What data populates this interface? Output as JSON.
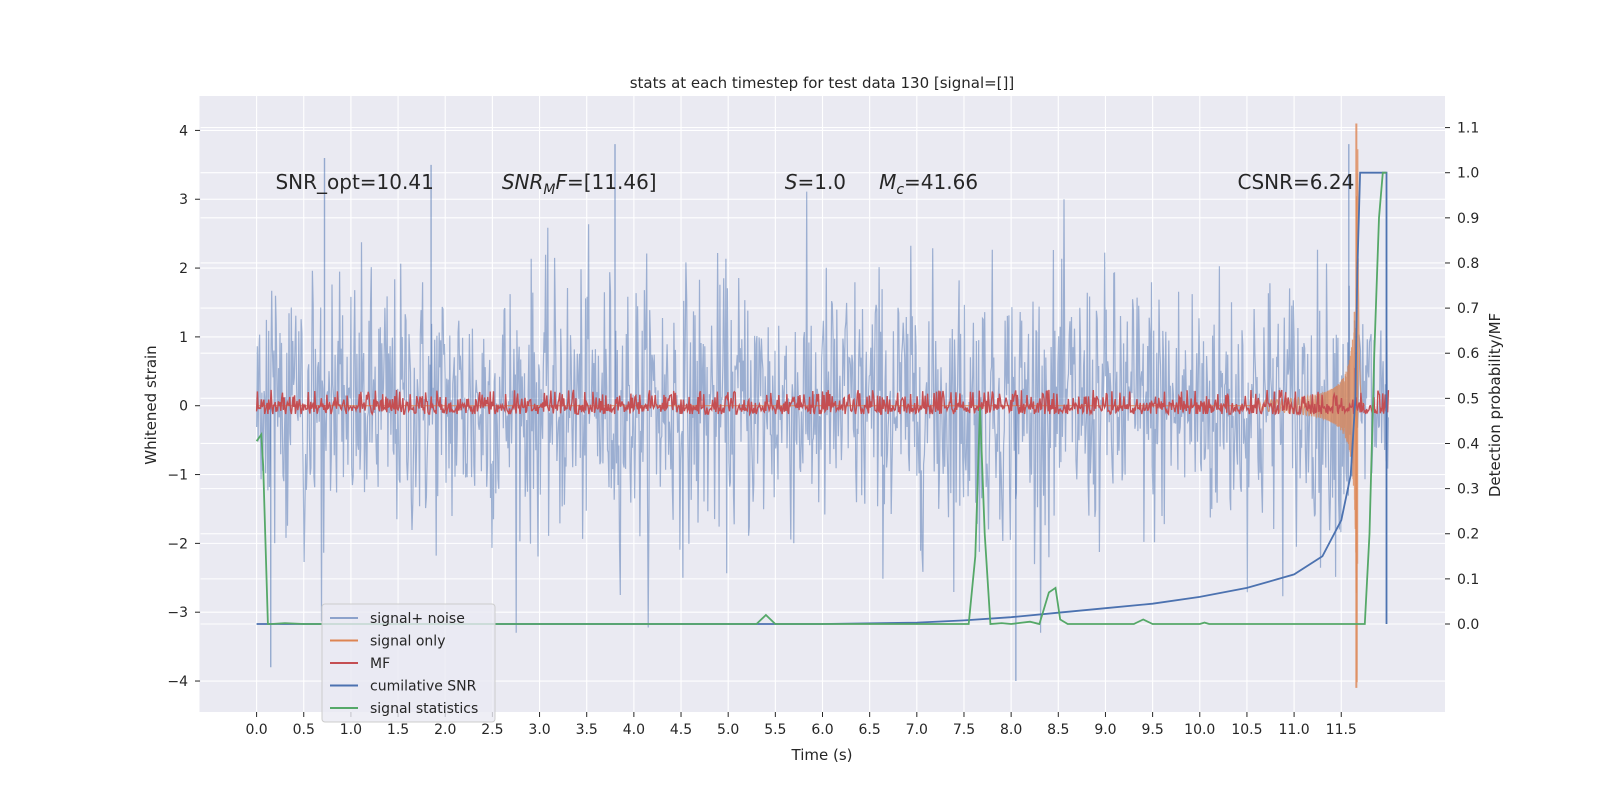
{
  "chart_data": {
    "type": "line",
    "title": "stats at each timestep for test data 130 [signal=[]]",
    "xlabel": "Time (s)",
    "ylabel": "Whitened strain",
    "y2label": "Detection probability/MF",
    "xlim": [
      -0.6,
      12.6
    ],
    "ylim": [
      -4.45,
      4.5
    ],
    "y2lim": [
      -0.195,
      1.17
    ],
    "x_ticks": [
      "0.0",
      "0.5",
      "1.0",
      "1.5",
      "2.0",
      "2.5",
      "3.0",
      "3.5",
      "4.0",
      "4.5",
      "5.0",
      "5.5",
      "6.0",
      "6.5",
      "7.0",
      "7.5",
      "8.0",
      "8.5",
      "9.0",
      "9.5",
      "10.0",
      "10.5",
      "11.0",
      "11.5"
    ],
    "y_ticks": [
      "4",
      "3",
      "2",
      "1",
      "0",
      "−1",
      "−2",
      "−3",
      "−4"
    ],
    "y2_ticks": [
      "1.1",
      "1.0",
      "0.9",
      "0.8",
      "0.7",
      "0.6",
      "0.5",
      "0.4",
      "0.3",
      "0.2",
      "0.1",
      "0.0"
    ],
    "grid": true,
    "legend_position": "bottom-left",
    "annotations": [
      {
        "text": "SNR_opt=10.41",
        "x": 0.2,
        "y": 3.25
      },
      {
        "text": "SNR_MF=[11.46]",
        "x": 2.6,
        "y": 3.25
      },
      {
        "text": "S=1.0",
        "x": 5.6,
        "y": 3.25
      },
      {
        "text": "M_c=41.66",
        "x": 6.6,
        "y": 3.25
      },
      {
        "text": "CSNR=6.24",
        "x": 10.4,
        "y": 3.25
      }
    ],
    "series": [
      {
        "name": "signal+ noise",
        "axis": "left",
        "color": "#4c72b0",
        "description": "whitened strain noise band, roughly within -3 to 3.6",
        "x_range": [
          0.0,
          12.0
        ],
        "envelope_typical": [
          -2.3,
          2.6
        ],
        "peaks": [
          {
            "x": 3.8,
            "y": 3.8
          },
          {
            "x": 1.85,
            "y": 3.5
          },
          {
            "x": 0.72,
            "y": 3.6
          },
          {
            "x": 8.05,
            "y": -4.0
          },
          {
            "x": 0.15,
            "y": -3.8
          },
          {
            "x": 11.58,
            "y": 3.8
          }
        ]
      },
      {
        "name": "signal only",
        "axis": "left",
        "color": "#dd8452",
        "description": "chirp waveform growing toward merger near 11.65 s",
        "points": [
          [
            0.0,
            0.0
          ],
          [
            10.5,
            0.03
          ],
          [
            11.0,
            0.1
          ],
          [
            11.3,
            0.25
          ],
          [
            11.5,
            0.6
          ],
          [
            11.6,
            1.5
          ],
          [
            11.65,
            4.1
          ],
          [
            11.67,
            -4.1
          ],
          [
            11.72,
            0.0
          ],
          [
            12.0,
            0.0
          ]
        ]
      },
      {
        "name": "MF",
        "axis": "left",
        "color": "#c44e52",
        "description": "matched filter output hovering around zero",
        "envelope": [
          -0.12,
          0.25
        ],
        "spike": {
          "x": 11.65,
          "y": 0.55
        }
      },
      {
        "name": "cumilative SNR",
        "axis": "right",
        "color": "#4c72b0",
        "points": [
          [
            0.0,
            0.0
          ],
          [
            5.0,
            0.0
          ],
          [
            6.0,
            0.0
          ],
          [
            7.0,
            0.003
          ],
          [
            7.5,
            0.008
          ],
          [
            8.0,
            0.015
          ],
          [
            8.5,
            0.025
          ],
          [
            9.0,
            0.035
          ],
          [
            9.5,
            0.045
          ],
          [
            10.0,
            0.06
          ],
          [
            10.5,
            0.08
          ],
          [
            11.0,
            0.11
          ],
          [
            11.3,
            0.15
          ],
          [
            11.5,
            0.23
          ],
          [
            11.6,
            0.33
          ],
          [
            11.65,
            0.5
          ],
          [
            11.67,
            0.78
          ],
          [
            11.7,
            1.0
          ],
          [
            11.98,
            1.0
          ],
          [
            11.98,
            0.0
          ]
        ]
      },
      {
        "name": "signal statistics",
        "axis": "right",
        "color": "#55a868",
        "points": [
          [
            0.0,
            0.405
          ],
          [
            0.05,
            0.42
          ],
          [
            0.07,
            0.35
          ],
          [
            0.12,
            0.0
          ],
          [
            0.16,
            0.0
          ],
          [
            0.3,
            0.002
          ],
          [
            0.5,
            0.0
          ],
          [
            5.3,
            0.0
          ],
          [
            5.4,
            0.02
          ],
          [
            5.5,
            0.0
          ],
          [
            7.55,
            0.0
          ],
          [
            7.62,
            0.15
          ],
          [
            7.67,
            0.48
          ],
          [
            7.72,
            0.2
          ],
          [
            7.78,
            0.0
          ],
          [
            7.9,
            0.002
          ],
          [
            8.0,
            0.0
          ],
          [
            8.2,
            0.005
          ],
          [
            8.3,
            0.0
          ],
          [
            8.4,
            0.07
          ],
          [
            8.47,
            0.08
          ],
          [
            8.52,
            0.01
          ],
          [
            8.6,
            0.0
          ],
          [
            9.3,
            0.0
          ],
          [
            9.4,
            0.01
          ],
          [
            9.5,
            0.0
          ],
          [
            10.0,
            0.0
          ],
          [
            10.05,
            0.003
          ],
          [
            10.1,
            0.0
          ],
          [
            11.75,
            0.0
          ],
          [
            11.8,
            0.2
          ],
          [
            11.85,
            0.6
          ],
          [
            11.9,
            0.9
          ],
          [
            11.94,
            1.0
          ],
          [
            11.98,
            1.0
          ]
        ]
      }
    ]
  }
}
